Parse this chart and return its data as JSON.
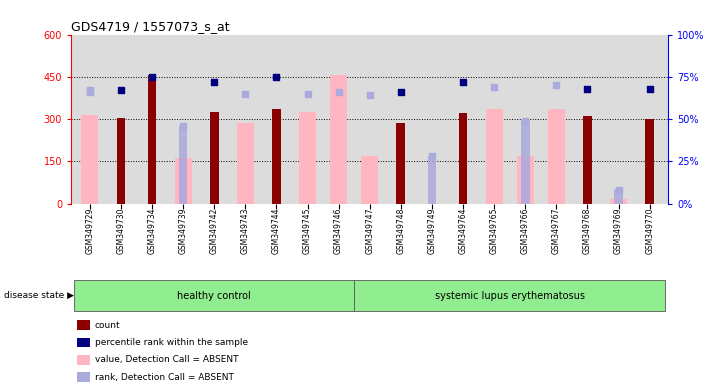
{
  "title": "GDS4719 / 1557073_s_at",
  "samples": [
    "GSM349729",
    "GSM349730",
    "GSM349734",
    "GSM349739",
    "GSM349742",
    "GSM349743",
    "GSM349744",
    "GSM349745",
    "GSM349746",
    "GSM349747",
    "GSM349748",
    "GSM349749",
    "GSM349764",
    "GSM349765",
    "GSM349766",
    "GSM349767",
    "GSM349768",
    "GSM349769",
    "GSM349770"
  ],
  "healthy_count": 9,
  "count_vals": [
    null,
    305,
    455,
    null,
    325,
    null,
    335,
    null,
    null,
    null,
    285,
    null,
    320,
    null,
    null,
    null,
    310,
    null,
    300
  ],
  "value_absent": [
    315,
    null,
    null,
    160,
    null,
    285,
    null,
    325,
    455,
    170,
    null,
    null,
    null,
    335,
    170,
    335,
    null,
    15,
    null
  ],
  "rank_absent": [
    null,
    null,
    null,
    275,
    null,
    null,
    null,
    null,
    null,
    null,
    null,
    170,
    null,
    null,
    295,
    null,
    null,
    50,
    null
  ],
  "pct_dark": [
    null,
    67,
    75,
    null,
    72,
    null,
    75,
    null,
    null,
    null,
    66,
    null,
    72,
    null,
    null,
    null,
    68,
    null,
    68
  ],
  "pct_light": [
    67,
    null,
    null,
    null,
    null,
    65,
    null,
    65,
    66,
    64,
    null,
    null,
    null,
    69,
    null,
    70,
    null,
    null,
    null
  ],
  "pct_rank_absent": [
    66,
    null,
    null,
    46,
    null,
    null,
    null,
    null,
    null,
    null,
    null,
    28,
    null,
    null,
    49,
    null,
    null,
    8,
    null
  ],
  "ylim_left": [
    0,
    600
  ],
  "ylim_right": [
    0,
    100
  ],
  "bar_color_dark": "#8B0000",
  "bar_color_light": "#FFB6C1",
  "dot_color_dark": "#000080",
  "dot_color_light": "#AAAADD",
  "bg_color": "#DCDCDC",
  "group_color": "#90EE90"
}
